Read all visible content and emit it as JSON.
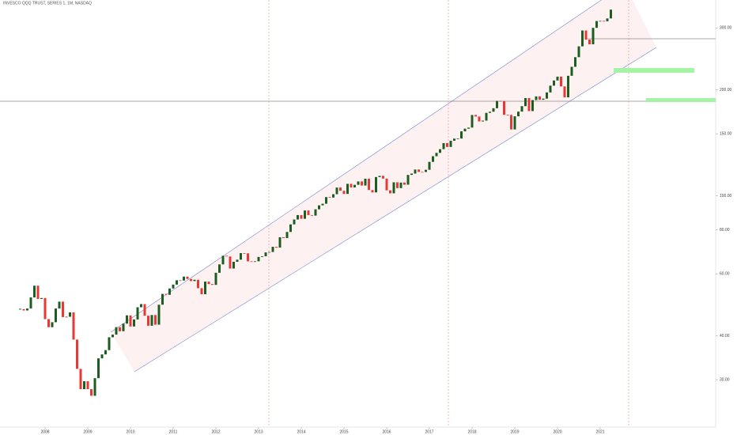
{
  "chart_data": {
    "type": "candlestick",
    "title": "INVESCO QQQ TRUST, SERIES 1, 1M, NASDAQ",
    "x": [
      "2007-06",
      "2007-07",
      "2007-08",
      "2007-09",
      "2007-10",
      "2007-11",
      "2007-12",
      "2008-01",
      "2008-02",
      "2008-03",
      "2008-04",
      "2008-05",
      "2008-06",
      "2008-07",
      "2008-08",
      "2008-09",
      "2008-10",
      "2008-11",
      "2008-12",
      "2009-01",
      "2009-02",
      "2009-03",
      "2009-04",
      "2009-05",
      "2009-06",
      "2009-07",
      "2009-08",
      "2009-09",
      "2009-10",
      "2009-11",
      "2009-12",
      "2010-01",
      "2010-02",
      "2010-03",
      "2010-04",
      "2010-05",
      "2010-06",
      "2010-07",
      "2010-08",
      "2010-09",
      "2010-10",
      "2010-11",
      "2010-12",
      "2011-01",
      "2011-02",
      "2011-03",
      "2011-04",
      "2011-05",
      "2011-06",
      "2011-07",
      "2011-08",
      "2011-09",
      "2011-10",
      "2011-11",
      "2011-12",
      "2012-01",
      "2012-02",
      "2012-03",
      "2012-04",
      "2012-05",
      "2012-06",
      "2012-07",
      "2012-08",
      "2012-09",
      "2012-10",
      "2012-11",
      "2012-12",
      "2013-01",
      "2013-02",
      "2013-03",
      "2013-04",
      "2013-05",
      "2013-06",
      "2013-07",
      "2013-08",
      "2013-09",
      "2013-10",
      "2013-11",
      "2013-12",
      "2014-01",
      "2014-02",
      "2014-03",
      "2014-04",
      "2014-05",
      "2014-06",
      "2014-07",
      "2014-08",
      "2014-09",
      "2014-10",
      "2014-11",
      "2014-12",
      "2015-01",
      "2015-02",
      "2015-03",
      "2015-04",
      "2015-05",
      "2015-06",
      "2015-07",
      "2015-08",
      "2015-09",
      "2015-10",
      "2015-11",
      "2015-12",
      "2016-01",
      "2016-02",
      "2016-03",
      "2016-04",
      "2016-05",
      "2016-06",
      "2016-07",
      "2016-08",
      "2016-09",
      "2016-10",
      "2016-11",
      "2016-12",
      "2017-01",
      "2017-02",
      "2017-03",
      "2017-04",
      "2017-05",
      "2017-06",
      "2017-07",
      "2017-08",
      "2017-09",
      "2017-10",
      "2017-11",
      "2017-12",
      "2018-01",
      "2018-02",
      "2018-03",
      "2018-04",
      "2018-05",
      "2018-06",
      "2018-07",
      "2018-08",
      "2018-09",
      "2018-10",
      "2018-11",
      "2018-12",
      "2019-01",
      "2019-02",
      "2019-03",
      "2019-04",
      "2019-05",
      "2019-06",
      "2019-07",
      "2019-08",
      "2019-09",
      "2019-10",
      "2019-11",
      "2019-12",
      "2020-01",
      "2020-02",
      "2020-03",
      "2020-04",
      "2020-05",
      "2020-06",
      "2020-07",
      "2020-08",
      "2020-09",
      "2020-10",
      "2020-11",
      "2020-12",
      "2021-01",
      "2021-02",
      "2021-03",
      "2021-04"
    ],
    "values": [
      47.6,
      47.2,
      47.8,
      51.4,
      55.5,
      50.9,
      51.2,
      44.6,
      42.3,
      43.7,
      47.8,
      50.0,
      45.2,
      45.3,
      46.6,
      39.0,
      32.2,
      28.2,
      29.7,
      28.2,
      27.0,
      30.3,
      34.5,
      35.4,
      36.4,
      39.6,
      40.3,
      42.3,
      41.2,
      43.3,
      45.7,
      42.5,
      44.5,
      48.2,
      49.2,
      45.6,
      42.7,
      45.8,
      43.0,
      49.0,
      52.6,
      52.3,
      54.5,
      55.9,
      57.5,
      57.4,
      58.9,
      58.0,
      57.2,
      57.7,
      54.6,
      52.5,
      57.0,
      56.1,
      55.8,
      60.4,
      63.8,
      67.5,
      67.2,
      62.1,
      64.9,
      65.8,
      68.7,
      68.6,
      65.1,
      64.9,
      65.1,
      67.0,
      67.3,
      69.0,
      69.2,
      71.6,
      71.2,
      76.2,
      75.8,
      78.9,
      82.9,
      85.6,
      88.1,
      86.0,
      90.8,
      88.1,
      87.8,
      91.5,
      93.9,
      94.9,
      99.1,
      98.8,
      101.0,
      105.5,
      103.3,
      101.2,
      108.1,
      105.6,
      107.4,
      109.8,
      106.9,
      111.8,
      103.8,
      102.2,
      113.0,
      113.9,
      111.9,
      103.6,
      101.6,
      109.2,
      105.1,
      109.0,
      107.5,
      114.6,
      115.6,
      118.7,
      116.9,
      116.8,
      118.5,
      124.8,
      129.5,
      132.4,
      135.6,
      141.1,
      137.6,
      143.3,
      145.3,
      145.4,
      152.4,
      155.1,
      156.2,
      169.6,
      167.9,
      162.6,
      163.5,
      172.0,
      173.3,
      177.3,
      186.0,
      185.8,
      169.8,
      169.7,
      154.3,
      168.2,
      173.4,
      179.7,
      189.5,
      174.0,
      187.0,
      191.6,
      187.4,
      188.8,
      196.6,
      205.5,
      212.6,
      218.0,
      204.5,
      190.4,
      219.2,
      232.5,
      247.6,
      265.8,
      294.9,
      277.8,
      269.4,
      300.0,
      313.7,
      314.0,
      313.2,
      319.1,
      338.0
    ],
    "up_color": "#1b5e20",
    "down_color": "#e53935",
    "log_scale": true,
    "ylim": [
      22,
      360
    ],
    "yticks": [
      {
        "value": 30,
        "label": "30.00"
      },
      {
        "value": 40,
        "label": "40.00"
      },
      {
        "value": 60,
        "label": "60.00"
      },
      {
        "value": 80,
        "label": "80.00"
      },
      {
        "value": 100,
        "label": "100.00"
      },
      {
        "value": 150,
        "label": "150.00"
      },
      {
        "value": 200,
        "label": "200.00"
      },
      {
        "value": 300,
        "label": "300.00"
      }
    ],
    "xticks": [
      {
        "value": "2008-01",
        "label": "2008"
      },
      {
        "value": "2009-01",
        "label": "2009"
      },
      {
        "value": "2010-01",
        "label": "2010"
      },
      {
        "value": "2011-01",
        "label": "2011"
      },
      {
        "value": "2012-01",
        "label": "2012"
      },
      {
        "value": "2013-01",
        "label": "2013"
      },
      {
        "value": "2014-01",
        "label": "2014"
      },
      {
        "value": "2015-01",
        "label": "2015"
      },
      {
        "value": "2016-01",
        "label": "2016"
      },
      {
        "value": "2017-01",
        "label": "2017"
      },
      {
        "value": "2018-01",
        "label": "2018"
      },
      {
        "value": "2019-01",
        "label": "2019"
      },
      {
        "value": "2020-01",
        "label": "2020"
      },
      {
        "value": "2021-01",
        "label": "2021"
      }
    ]
  }
}
